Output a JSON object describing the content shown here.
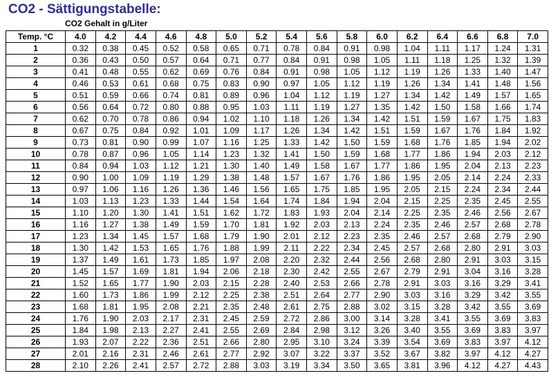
{
  "title": "CO2 - Sättigungstabelle:",
  "subtitle": "CO2 Gehalt in g/Liter",
  "table": {
    "corner_label": "Temp. °C",
    "columns": [
      "4.0",
      "4.2",
      "4.4",
      "4.6",
      "4.8",
      "5.0",
      "5.2",
      "5.4",
      "5.6",
      "5.8",
      "6.0",
      "6.2",
      "6.4",
      "6.6",
      "6.8",
      "7.0"
    ],
    "rows": [
      {
        "temp": "1",
        "values": [
          "0.32",
          "0.38",
          "0.45",
          "0.52",
          "0.58",
          "0.65",
          "0.71",
          "0.78",
          "0.84",
          "0.91",
          "0.98",
          "1.04",
          "1.11",
          "1.17",
          "1.24",
          "1.31"
        ]
      },
      {
        "temp": "2",
        "values": [
          "0.36",
          "0.43",
          "0.50",
          "0.57",
          "0.64",
          "0.71",
          "0.77",
          "0.84",
          "0.91",
          "0.98",
          "1.05",
          "1.11",
          "1.18",
          "1.25",
          "1.32",
          "1.39"
        ]
      },
      {
        "temp": "3",
        "values": [
          "0.41",
          "0.48",
          "0.55",
          "0.62",
          "0.69",
          "0.76",
          "0.84",
          "0.91",
          "0.98",
          "1.05",
          "1.12",
          "1.19",
          "1.26",
          "1.33",
          "1.40",
          "1.47"
        ]
      },
      {
        "temp": "4",
        "values": [
          "0.46",
          "0.53",
          "0.61",
          "0.68",
          "0.75",
          "0.83",
          "0.90",
          "0.97",
          "1.05",
          "1.12",
          "1.19",
          "1.26",
          "1.34",
          "1.41",
          "1.48",
          "1.56"
        ]
      },
      {
        "temp": "5",
        "values": [
          "0.51",
          "0.59",
          "0.66",
          "0.74",
          "0.81",
          "0.89",
          "0.96",
          "1.04",
          "1.12",
          "1.19",
          "1.27",
          "1.34",
          "1.42",
          "1.49",
          "1.57",
          "1.65"
        ]
      },
      {
        "temp": "6",
        "values": [
          "0.56",
          "0.64",
          "0.72",
          "0.80",
          "0.88",
          "0.95",
          "1.03",
          "1.11",
          "1.19",
          "1.27",
          "1.35",
          "1.42",
          "1.50",
          "1.58",
          "1.66",
          "1.74"
        ]
      },
      {
        "temp": "7",
        "values": [
          "0.62",
          "0.70",
          "0.78",
          "0.86",
          "0.94",
          "1.02",
          "1.10",
          "1.18",
          "1.26",
          "1.34",
          "1.42",
          "1.51",
          "1.59",
          "1.67",
          "1.75",
          "1.83"
        ]
      },
      {
        "temp": "8",
        "values": [
          "0.67",
          "0.75",
          "0.84",
          "0.92",
          "1.01",
          "1.09",
          "1.17",
          "1.26",
          "1.34",
          "1.42",
          "1.51",
          "1.59",
          "1.67",
          "1.76",
          "1.84",
          "1.92"
        ]
      },
      {
        "temp": "9",
        "values": [
          "0.73",
          "0.81",
          "0.90",
          "0.99",
          "1.07",
          "1.16",
          "1.25",
          "1.33",
          "1.42",
          "1.50",
          "1.59",
          "1.68",
          "1.76",
          "1.85",
          "1.94",
          "2.02"
        ]
      },
      {
        "temp": "10",
        "values": [
          "0.78",
          "0.87",
          "0.96",
          "1.05",
          "1.14",
          "1.23",
          "1.32",
          "1.41",
          "1.50",
          "1.59",
          "1.68",
          "1.77",
          "1.86",
          "1.94",
          "2.03",
          "2.12"
        ]
      },
      {
        "temp": "11",
        "values": [
          "0.84",
          "0.94",
          "1.03",
          "1.12",
          "1.21",
          "1.30",
          "1.40",
          "1.49",
          "1.58",
          "1.67",
          "1.77",
          "1.86",
          "1.95",
          "2.04",
          "2.13",
          "2.23"
        ]
      },
      {
        "temp": "12",
        "values": [
          "0.90",
          "1.00",
          "1.09",
          "1.19",
          "1.29",
          "1.38",
          "1.48",
          "1.57",
          "1.67",
          "1.76",
          "1.86",
          "1.95",
          "2.05",
          "2.14",
          "2.24",
          "2.33"
        ]
      },
      {
        "temp": "13",
        "values": [
          "0.97",
          "1.06",
          "1.16",
          "1.26",
          "1.36",
          "1.46",
          "1.56",
          "1.65",
          "1.75",
          "1.85",
          "1.95",
          "2.05",
          "2.15",
          "2.24",
          "2.34",
          "2.44"
        ]
      },
      {
        "temp": "14",
        "values": [
          "1.03",
          "1.13",
          "1.23",
          "1.33",
          "1.44",
          "1.54",
          "1.64",
          "1.74",
          "1.84",
          "1.94",
          "2.04",
          "2.15",
          "2.25",
          "2.35",
          "2.45",
          "2.55"
        ]
      },
      {
        "temp": "15",
        "values": [
          "1.10",
          "1.20",
          "1.30",
          "1.41",
          "1.51",
          "1.62",
          "1.72",
          "1.83",
          "1.93",
          "2.04",
          "2.14",
          "2.25",
          "2.35",
          "2.46",
          "2.56",
          "2.67"
        ]
      },
      {
        "temp": "16",
        "values": [
          "1.16",
          "1.27",
          "1.38",
          "1.49",
          "1.59",
          "1.70",
          "1.81",
          "1.92",
          "2.03",
          "2.13",
          "2.24",
          "2.35",
          "2.46",
          "2.57",
          "2.68",
          "2.78"
        ]
      },
      {
        "temp": "17",
        "values": [
          "1.23",
          "1.34",
          "1.45",
          "1.57",
          "1.68",
          "1.79",
          "1.90",
          "2.01",
          "2.12",
          "2.23",
          "2.35",
          "2.46",
          "2.57",
          "2.68",
          "2.79",
          "2.90"
        ]
      },
      {
        "temp": "18",
        "values": [
          "1.30",
          "1.42",
          "1.53",
          "1.65",
          "1.76",
          "1.88",
          "1.99",
          "2.11",
          "2.22",
          "2.34",
          "2.45",
          "2.57",
          "2.68",
          "2.80",
          "2.91",
          "3.03"
        ]
      },
      {
        "temp": "19",
        "values": [
          "1.37",
          "1.49",
          "1.61",
          "1.73",
          "1.85",
          "1.97",
          "2.08",
          "2.20",
          "2.32",
          "2.44",
          "2.56",
          "2.68",
          "2.80",
          "2.91",
          "3.03",
          "3.15"
        ]
      },
      {
        "temp": "20",
        "values": [
          "1.45",
          "1.57",
          "1.69",
          "1.81",
          "1.94",
          "2.06",
          "2.18",
          "2.30",
          "2.42",
          "2.55",
          "2.67",
          "2.79",
          "2.91",
          "3.04",
          "3.16",
          "3.28"
        ]
      },
      {
        "temp": "21",
        "values": [
          "1.52",
          "1.65",
          "1.77",
          "1.90",
          "2.03",
          "2.15",
          "2.28",
          "2.40",
          "2.53",
          "2.66",
          "2.78",
          "2.91",
          "3.03",
          "3.16",
          "3.29",
          "3.41"
        ]
      },
      {
        "temp": "22",
        "values": [
          "1.60",
          "1.73",
          "1.86",
          "1.99",
          "2.12",
          "2.25",
          "2.38",
          "2.51",
          "2.64",
          "2.77",
          "2.90",
          "3.03",
          "3.16",
          "3.29",
          "3.42",
          "3.55"
        ]
      },
      {
        "temp": "23",
        "values": [
          "1.68",
          "1.81",
          "1.95",
          "2.08",
          "2.21",
          "2.35",
          "2.48",
          "2.61",
          "2.75",
          "2.88",
          "3.02",
          "3.15",
          "3.28",
          "3.42",
          "3.55",
          "3.69"
        ]
      },
      {
        "temp": "24",
        "values": [
          "1.76",
          "1.90",
          "2.03",
          "2.17",
          "2.31",
          "2.45",
          "2.59",
          "2.72",
          "2.86",
          "3.00",
          "3.14",
          "3.28",
          "3.41",
          "3.55",
          "3.69",
          "3.83"
        ]
      },
      {
        "temp": "25",
        "values": [
          "1.84",
          "1.98",
          "2.13",
          "2.27",
          "2.41",
          "2.55",
          "2.69",
          "2.84",
          "2.98",
          "3.12",
          "3.26",
          "3.40",
          "3.55",
          "3.69",
          "3.83",
          "3.97"
        ]
      },
      {
        "temp": "26",
        "values": [
          "1.93",
          "2.07",
          "2.22",
          "2.36",
          "2.51",
          "2.66",
          "2.80",
          "2.95",
          "3.10",
          "3.24",
          "3.39",
          "3.54",
          "3.69",
          "3.83",
          "3.97",
          "4.12"
        ]
      },
      {
        "temp": "27",
        "values": [
          "2.01",
          "2.16",
          "2.31",
          "2.46",
          "2.61",
          "2.77",
          "2.92",
          "3.07",
          "3.22",
          "3.37",
          "3.52",
          "3.67",
          "3.82",
          "3.97",
          "4.12",
          "4.27"
        ]
      },
      {
        "temp": "28",
        "values": [
          "2.10",
          "2.26",
          "2.41",
          "2.57",
          "2.72",
          "2.88",
          "3.03",
          "3.19",
          "3.34",
          "3.50",
          "3.65",
          "3.81",
          "3.96",
          "4.12",
          "4.27",
          "4.43"
        ]
      }
    ]
  }
}
